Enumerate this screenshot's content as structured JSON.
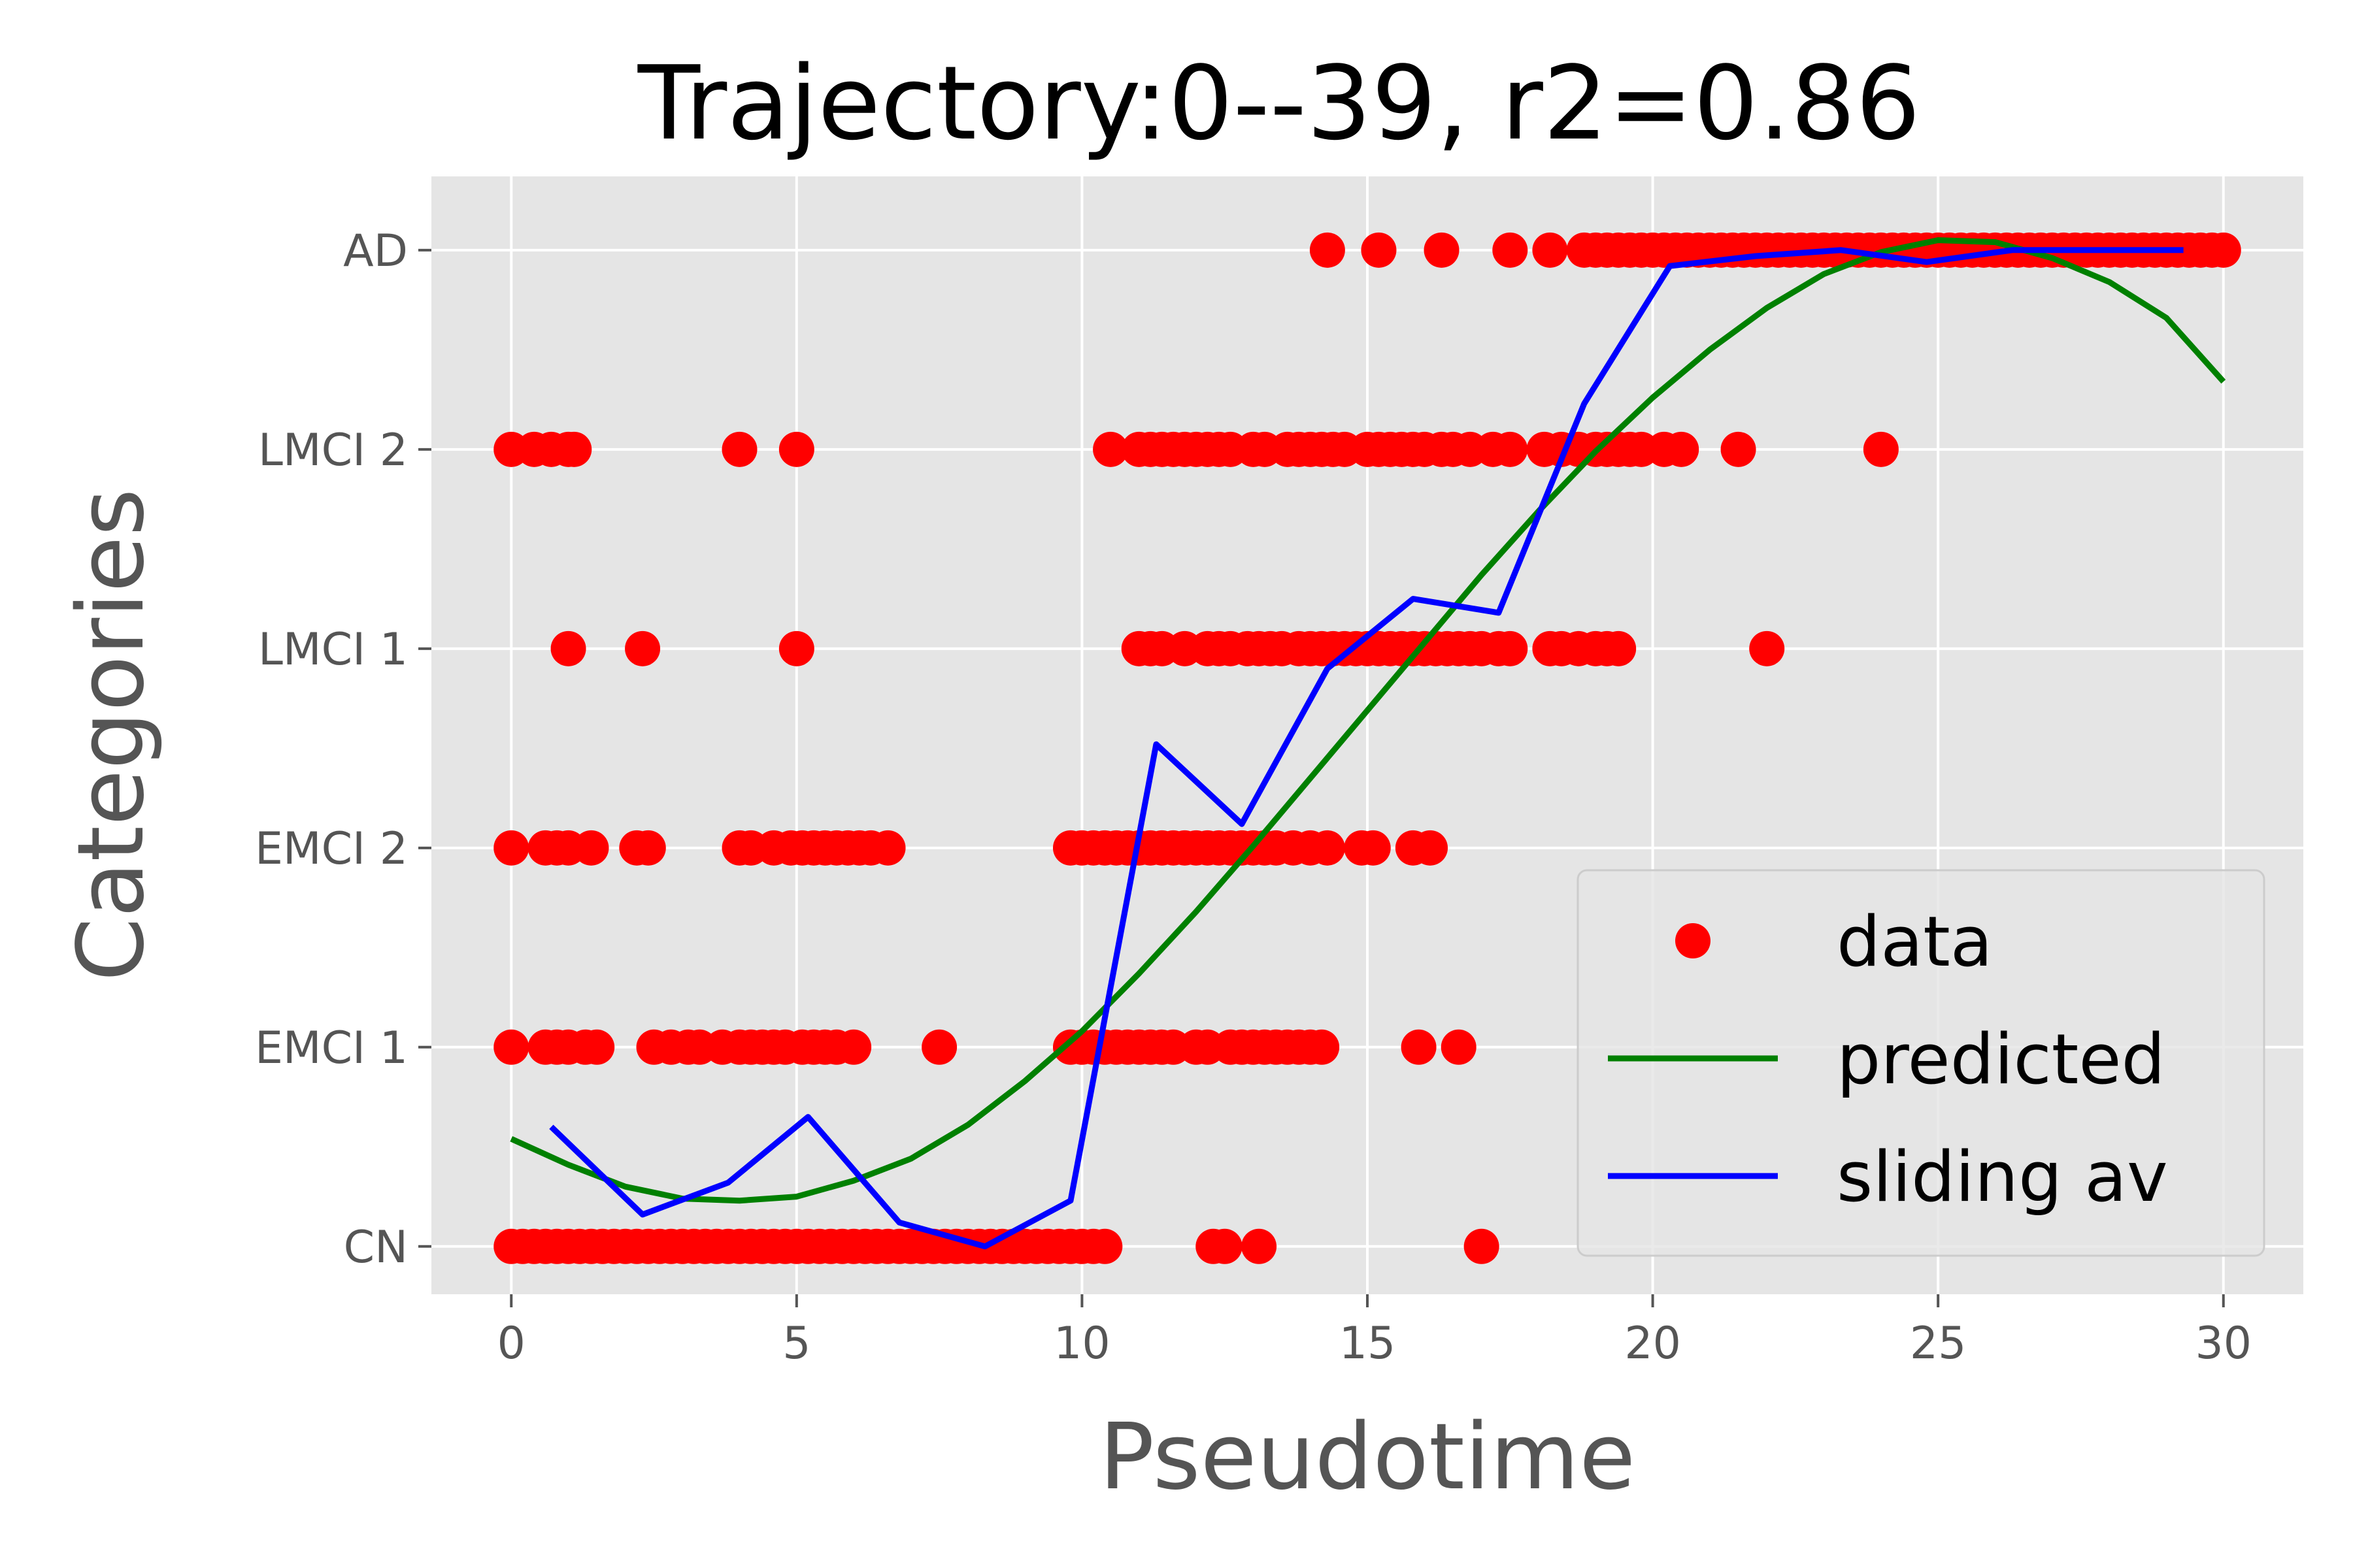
{
  "chart_data": {
    "type": "scatter",
    "title": "Trajectory:0--39, r2=0.86",
    "xlabel": "Pseudotime",
    "ylabel": "Categories",
    "xlim": [
      -1.4,
      31.4
    ],
    "ylim": [
      -0.24,
      5.37
    ],
    "xticks": [
      0,
      5,
      10,
      15,
      20,
      25,
      30
    ],
    "xtick_labels": [
      "0",
      "5",
      "10",
      "15",
      "20",
      "25",
      "30"
    ],
    "yticks": [
      0,
      1,
      2,
      3,
      4,
      5
    ],
    "ytick_labels": [
      "CN",
      "EMCI 1",
      "EMCI 2",
      "LMCI 1",
      "LMCI 2",
      "AD"
    ],
    "grid": true,
    "legend_position": "lower right",
    "series": [
      {
        "name": "data",
        "kind": "scatter",
        "color": "#ff0000",
        "rows": [
          {
            "y": 0,
            "x": [
              0,
              0.2,
              0.4,
              0.6,
              0.8,
              1,
              1.2,
              1.4,
              1.6,
              1.8,
              2,
              2.2,
              2.4,
              2.6,
              2.8,
              3,
              3.2,
              3.4,
              3.6,
              3.8,
              4,
              4.2,
              4.4,
              4.6,
              4.8,
              5,
              5.2,
              5.4,
              5.6,
              5.8,
              6,
              6.2,
              6.4,
              6.6,
              6.8,
              7,
              7.2,
              7.4,
              7.6,
              7.8,
              8,
              8.2,
              8.4,
              8.6,
              8.8,
              9,
              9.2,
              9.4,
              9.6,
              9.8,
              10,
              10.2,
              10.4,
              12.3,
              12.5,
              13.1,
              17
            ]
          },
          {
            "y": 1,
            "x": [
              0,
              0.6,
              0.8,
              1,
              1.3,
              1.5,
              2.5,
              2.8,
              3.1,
              3.3,
              3.7,
              4,
              4.2,
              4.4,
              4.6,
              4.8,
              5.1,
              5.3,
              5.5,
              5.7,
              6,
              7.5,
              9.8,
              10,
              10.2,
              10.4,
              10.6,
              10.8,
              11,
              11.2,
              11.4,
              11.6,
              12,
              12.2,
              12.6,
              12.8,
              13,
              13.2,
              13.4,
              13.6,
              13.8,
              14,
              14.2,
              15.9,
              16.6
            ]
          },
          {
            "y": 2,
            "x": [
              0,
              0.6,
              0.8,
              1,
              1.4,
              2.2,
              2.4,
              4,
              4.2,
              4.6,
              4.9,
              5.1,
              5.3,
              5.5,
              5.7,
              5.9,
              6.1,
              6.3,
              6.6,
              9.8,
              10,
              10.2,
              10.4,
              10.6,
              10.8,
              11,
              11.2,
              11.4,
              11.6,
              11.8,
              12,
              12.2,
              12.4,
              12.6,
              12.8,
              13,
              13.2,
              13.4,
              13.7,
              14,
              14.3,
              14.9,
              15.1,
              15.8,
              16.1
            ]
          },
          {
            "y": 3,
            "x": [
              1,
              2.3,
              5,
              11,
              11.2,
              11.4,
              11.8,
              12.2,
              12.4,
              12.6,
              12.9,
              13.1,
              13.3,
              13.5,
              13.8,
              14,
              14.2,
              14.4,
              14.6,
              14.8,
              15,
              15.2,
              15.4,
              15.6,
              15.8,
              16,
              16.2,
              16.4,
              16.6,
              16.8,
              17,
              17.3,
              17.5,
              18.2,
              18.4,
              18.7,
              19,
              19.2,
              19.4,
              22
            ]
          },
          {
            "y": 4,
            "x": [
              0,
              0.4,
              0.7,
              1,
              1.1,
              4,
              5,
              10.5,
              11,
              11.2,
              11.4,
              11.6,
              11.8,
              12,
              12.2,
              12.4,
              12.6,
              13,
              13.2,
              13.6,
              13.8,
              14,
              14.2,
              14.4,
              14.6,
              15,
              15.2,
              15.4,
              15.6,
              15.8,
              16,
              16.3,
              16.5,
              16.8,
              17.2,
              17.5,
              18.1,
              18.4,
              18.7,
              19,
              19.2,
              19.4,
              19.6,
              19.8,
              20.2,
              20.5,
              21.5,
              24
            ]
          },
          {
            "y": 5,
            "x": [
              14.3,
              15.2,
              16.3,
              17.5,
              18.2,
              18.8,
              19,
              19.2,
              19.4,
              19.6,
              19.8,
              20,
              20.2,
              20.4,
              20.6,
              20.8,
              21,
              21.2,
              21.4,
              21.6,
              21.8,
              22,
              22.2,
              22.4,
              22.6,
              22.8,
              23,
              23.2,
              23.4,
              23.6,
              23.8,
              24,
              24.2,
              24.4,
              24.6,
              24.8,
              25,
              25.2,
              25.4,
              25.6,
              25.8,
              26,
              26.2,
              26.4,
              26.6,
              26.8,
              27,
              27.2,
              27.4,
              27.6,
              27.8,
              28,
              28.2,
              28.4,
              28.6,
              28.8,
              29,
              29.2,
              29.4,
              29.6,
              29.8,
              30
            ]
          }
        ]
      },
      {
        "name": "predicted",
        "kind": "line",
        "color": "#008000",
        "x": [
          0,
          1,
          2,
          3,
          4,
          5,
          6,
          7,
          8,
          9,
          10,
          11,
          12,
          13,
          14,
          15,
          16,
          17,
          18,
          19,
          20,
          21,
          22,
          23,
          24,
          25,
          26,
          27,
          28,
          29,
          30
        ],
        "y": [
          0.54,
          0.41,
          0.3,
          0.24,
          0.23,
          0.25,
          0.33,
          0.44,
          0.61,
          0.83,
          1.08,
          1.37,
          1.68,
          2.01,
          2.35,
          2.69,
          3.03,
          3.37,
          3.69,
          3.99,
          4.26,
          4.5,
          4.71,
          4.88,
          4.99,
          5.05,
          5.04,
          4.96,
          4.84,
          4.66,
          4.34
        ]
      },
      {
        "name": "sliding av",
        "kind": "line",
        "color": "#0000ff",
        "x": [
          0.7,
          2.3,
          3.8,
          5.2,
          6.8,
          8.3,
          9.8,
          11.3,
          12.8,
          14.3,
          15.8,
          17.3,
          18.8,
          20.3,
          21.8,
          23.3,
          24.8,
          26.3,
          27.8,
          29.3
        ],
        "y": [
          0.6,
          0.16,
          0.32,
          0.65,
          0.12,
          0,
          0.23,
          2.52,
          2.12,
          2.9,
          3.25,
          3.18,
          4.23,
          4.92,
          4.97,
          5,
          4.94,
          5,
          5,
          5
        ]
      }
    ]
  }
}
